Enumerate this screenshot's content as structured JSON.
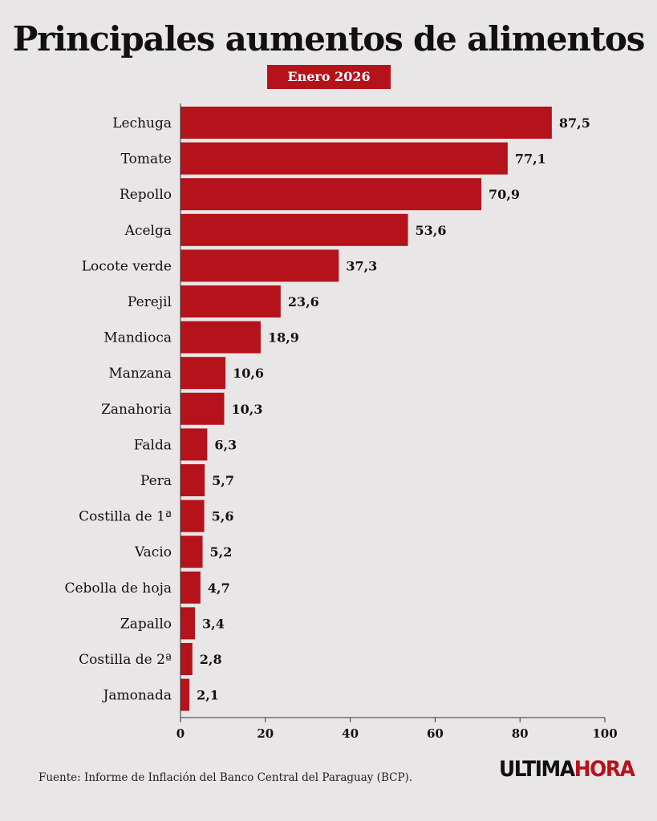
{
  "header": {
    "title": "Principales aumentos de alimentos",
    "subtitle": "Enero 2026"
  },
  "footer": {
    "source": "Fuente: Informe de Inflación del Banco Central del Paraguay (BCP).",
    "logo_part1": "ULTIMA",
    "logo_part2": "HORA"
  },
  "colors": {
    "bar": "#b5121b",
    "background": "#e8e6e6",
    "logo_accent": "#b5121b"
  },
  "chart_data": {
    "type": "bar",
    "orientation": "horizontal",
    "title": "Principales aumentos de alimentos",
    "subtitle": "Enero 2026",
    "categories": [
      "Lechuga",
      "Tomate",
      "Repollo",
      "Acelga",
      "Locote verde",
      "Perejil",
      "Mandioca",
      "Manzana",
      "Zanahoria",
      "Falda",
      "Pera",
      "Costilla de 1ª",
      "Vacio",
      "Cebolla de hoja",
      "Zapallo",
      "Costilla de 2ª",
      "Jamonada"
    ],
    "values": [
      87.5,
      77.1,
      70.9,
      53.6,
      37.3,
      23.6,
      18.9,
      10.6,
      10.3,
      6.3,
      5.7,
      5.6,
      5.2,
      4.7,
      3.4,
      2.8,
      2.1
    ],
    "value_labels": [
      "87,5",
      "77,1",
      "70,9",
      "53,6",
      "37,3",
      "23,6",
      "18,9",
      "10,6",
      "10,3",
      "6,3",
      "5,7",
      "5,6",
      "5,2",
      "4,7",
      "3,4",
      "2,8",
      "2,1"
    ],
    "xlim": [
      0,
      100
    ],
    "xticks": [
      0,
      20,
      40,
      60,
      80,
      100
    ],
    "xlabel": "",
    "ylabel": "",
    "grid": false,
    "legend": "none"
  }
}
